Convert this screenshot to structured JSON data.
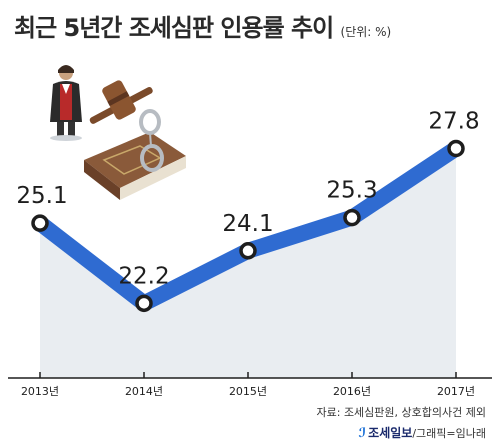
{
  "header": {
    "title": "최근 5년간 조세심판 인용률 추이",
    "unit": "(단위: %)"
  },
  "chart_data": {
    "type": "line",
    "title": "최근 5년간 조세심판 인용률 추이",
    "unit": "(단위: %)",
    "categories": [
      "2013년",
      "2014년",
      "2015년",
      "2016년",
      "2017년"
    ],
    "series": [
      {
        "values": [
          25.1,
          22.2,
          24.1,
          25.3,
          27.8
        ]
      }
    ],
    "data_labels": [
      "25.1",
      "22.2",
      "24.1",
      "25.3",
      "27.8"
    ],
    "ylim": [
      19.5,
      31
    ],
    "grid": false,
    "colors": {
      "line": "#2f6bd1",
      "area": "#e9edf1",
      "marker_fill": "#ffffff",
      "marker_stroke": "#1e1e1e",
      "axis": "#1e1e1e"
    }
  },
  "footer": {
    "source": "자료: 조세심판원, 상호합의사건 제외",
    "brand_mark": "ℐ",
    "brand": "조세일보",
    "credit": "/그래픽=임나래"
  },
  "decor": {
    "illustration": "judge-gavel-law-book-handcuffs-illustration"
  }
}
